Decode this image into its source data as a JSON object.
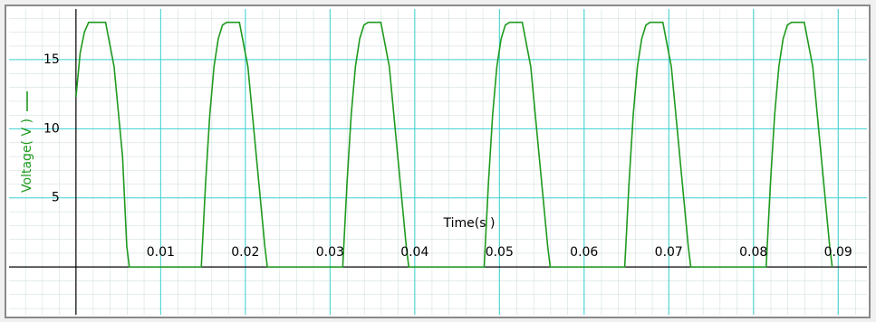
{
  "chart_data": {
    "type": "line",
    "xlabel": "Time(s )",
    "x": [
      0,
      0.0005,
      0.001,
      0.0015,
      0.0035,
      0.0045,
      0.0055,
      0.006,
      0.0063,
      0.0148,
      0.0153,
      0.0158,
      0.0163,
      0.0168,
      0.0173,
      0.0178,
      0.0193,
      0.0203,
      0.0213,
      0.0223,
      0.0226,
      0.0315,
      0.032,
      0.0325,
      0.033,
      0.0335,
      0.034,
      0.0345,
      0.036,
      0.037,
      0.038,
      0.039,
      0.0393,
      0.0482,
      0.0487,
      0.0492,
      0.0497,
      0.0502,
      0.0507,
      0.0512,
      0.0527,
      0.0537,
      0.0547,
      0.0557,
      0.056,
      0.0648,
      0.0653,
      0.0658,
      0.0663,
      0.0668,
      0.0673,
      0.0678,
      0.0693,
      0.0703,
      0.0713,
      0.0723,
      0.0726,
      0.0815,
      0.082,
      0.0825,
      0.083,
      0.0835,
      0.084,
      0.0845,
      0.086,
      0.087,
      0.088,
      0.089,
      0.0893
    ],
    "series": [
      {
        "name": "Voltage( V )",
        "color": "#1f9a1f",
        "values": [
          12.3,
          15.5,
          17,
          17.7,
          17.7,
          14.5,
          8,
          1.5,
          0,
          0,
          6,
          11,
          14.5,
          16.5,
          17.5,
          17.7,
          17.7,
          14.5,
          8,
          1.5,
          0,
          0,
          6,
          11,
          14.5,
          16.5,
          17.5,
          17.7,
          17.7,
          14.5,
          8,
          1.5,
          0,
          0,
          6,
          11,
          14.5,
          16.5,
          17.5,
          17.7,
          17.7,
          14.5,
          8,
          1.5,
          0,
          0,
          6,
          11,
          14.5,
          16.5,
          17.5,
          17.7,
          17.7,
          14.5,
          8,
          1.5,
          0,
          0,
          6,
          11,
          14.5,
          16.5,
          17.5,
          17.7,
          17.7,
          14.5,
          8,
          1.5,
          0
        ]
      }
    ],
    "xlim": [
      -0.0079,
      0.0934
    ],
    "ylim": [
      -3.46,
      18.66
    ],
    "xticks": [
      0.01,
      0.02,
      0.03,
      0.04,
      0.05,
      0.06,
      0.07,
      0.08,
      0.09
    ],
    "yticks": [
      5,
      10,
      15
    ],
    "grid": true
  }
}
